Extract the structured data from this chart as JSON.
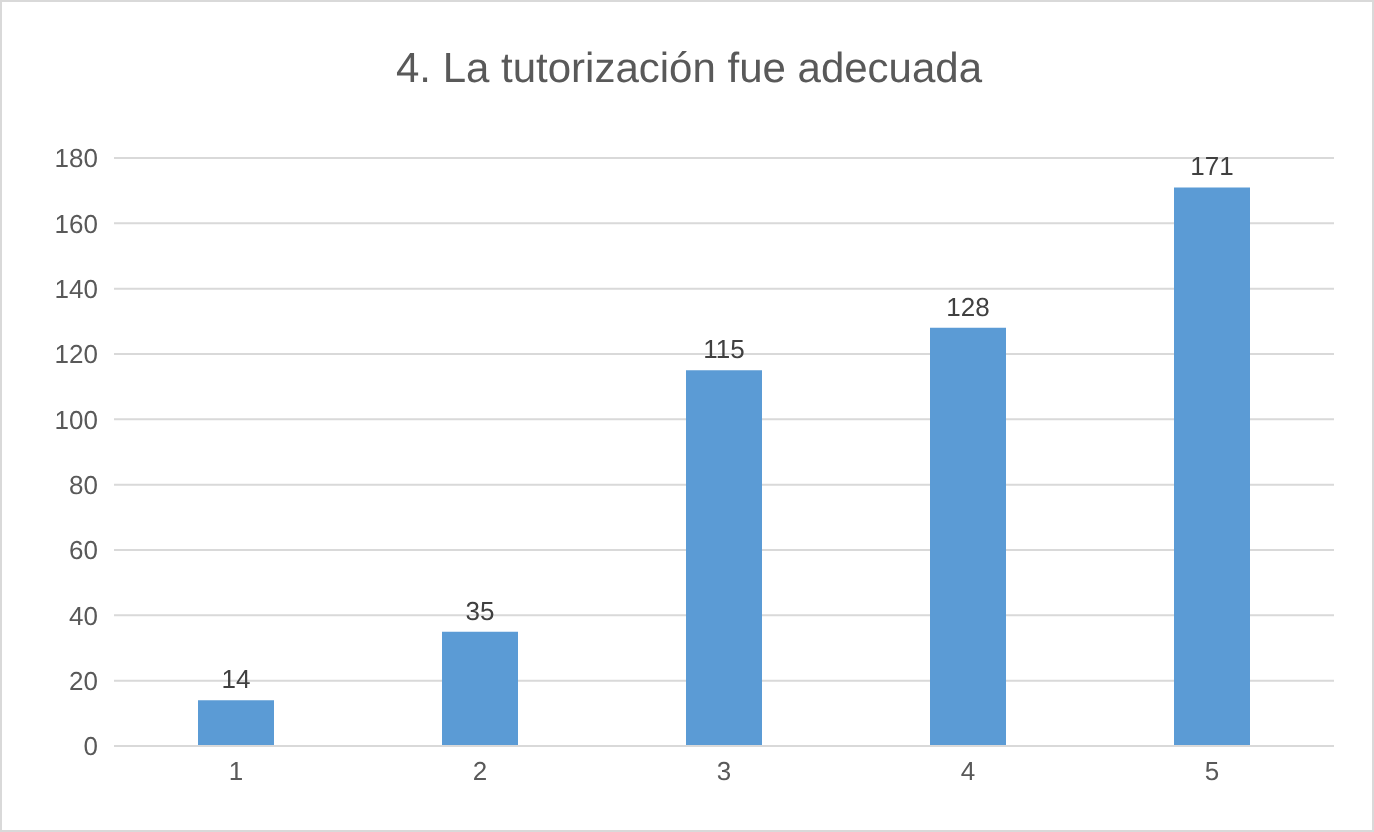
{
  "chart_data": {
    "type": "bar",
    "title": "4. La tutorización fue adecuada",
    "categories": [
      "1",
      "2",
      "3",
      "4",
      "5"
    ],
    "values": [
      14,
      35,
      115,
      128,
      171
    ],
    "color": "#5b9bd5",
    "ylim": [
      0,
      180
    ],
    "yticks": [
      0,
      20,
      40,
      60,
      80,
      100,
      120,
      140,
      160,
      180
    ],
    "grid": "y",
    "data_labels": true
  }
}
